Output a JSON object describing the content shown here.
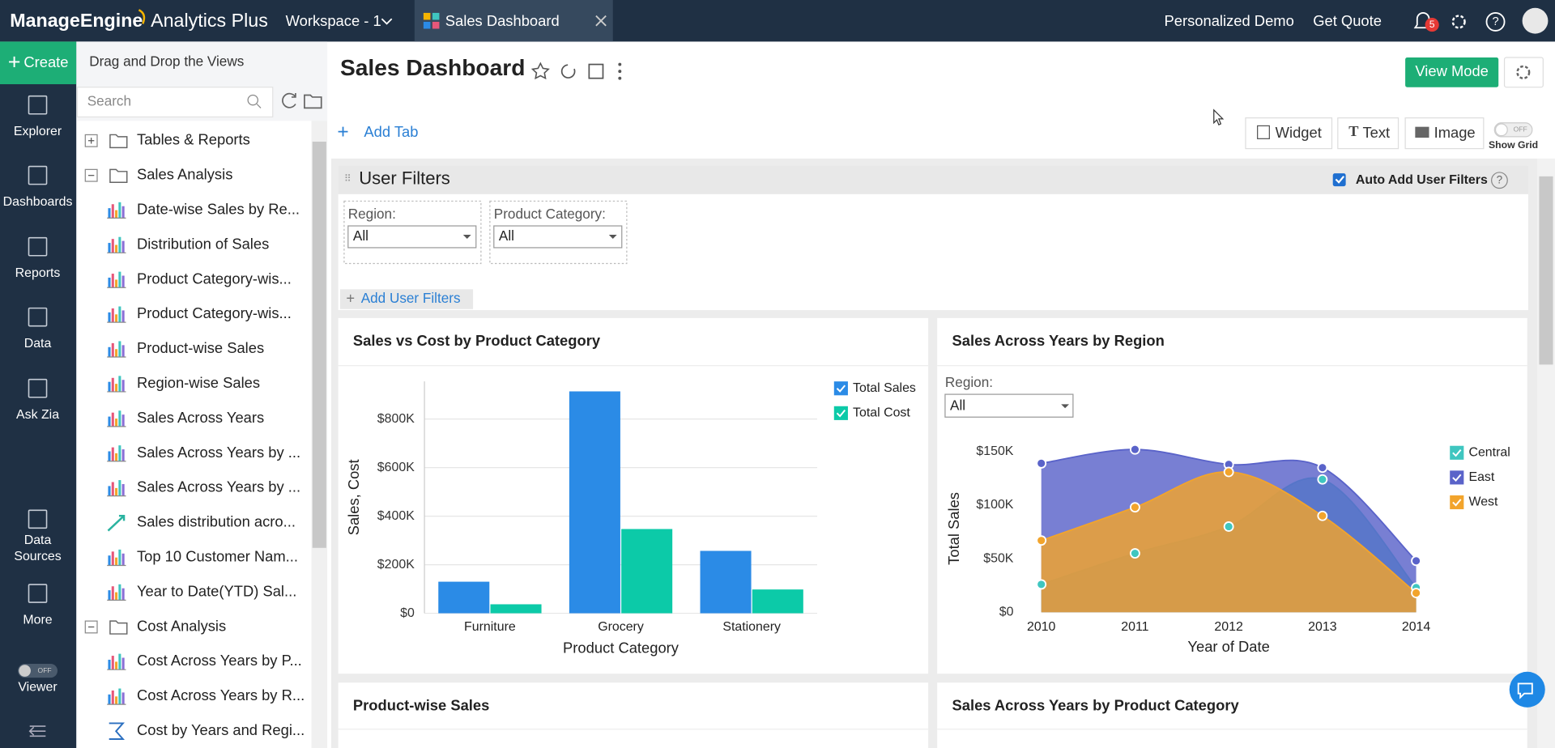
{
  "header": {
    "brand": "ManageEngine",
    "product": "Analytics Plus",
    "workspace": "Workspace - 1",
    "tab": "Sales Dashboard",
    "links": [
      "Personalized Demo",
      "Get Quote"
    ],
    "notifications": "5"
  },
  "nav": {
    "create": "Create",
    "items": [
      "Explorer",
      "Dashboards",
      "Reports",
      "Data",
      "Ask Zia",
      "Data Sources",
      "More",
      "Viewer"
    ],
    "viewer_toggle": "OFF"
  },
  "sidebar": {
    "title": "Drag and Drop the Views",
    "search": "Search",
    "tree": [
      {
        "label": "Tables & Reports",
        "type": "folder",
        "expanded": false
      },
      {
        "label": "Sales Analysis",
        "type": "folder",
        "expanded": true
      },
      {
        "label": "Date-wise Sales by Re...",
        "type": "bar"
      },
      {
        "label": "Distribution of Sales",
        "type": "bar"
      },
      {
        "label": "Product Category-wis...",
        "type": "bar"
      },
      {
        "label": "Product Category-wis...",
        "type": "bar"
      },
      {
        "label": "Product-wise Sales",
        "type": "bar"
      },
      {
        "label": "Region-wise Sales",
        "type": "bar"
      },
      {
        "label": "Sales Across Years",
        "type": "bar"
      },
      {
        "label": "Sales Across Years by ...",
        "type": "bar"
      },
      {
        "label": "Sales Across Years by ...",
        "type": "bar"
      },
      {
        "label": "Sales distribution acro...",
        "type": "scatter"
      },
      {
        "label": "Top 10 Customer Nam...",
        "type": "bar"
      },
      {
        "label": "Year to Date(YTD) Sal...",
        "type": "bar"
      },
      {
        "label": "Cost Analysis",
        "type": "folder",
        "expanded": true
      },
      {
        "label": "Cost Across Years by P...",
        "type": "bar"
      },
      {
        "label": "Cost Across Years by R...",
        "type": "bar"
      },
      {
        "label": "Cost by Years and Regi...",
        "type": "pivot"
      }
    ]
  },
  "dashboard": {
    "title": "Sales Dashboard",
    "view_mode": "View Mode",
    "add_tab": "Add Tab",
    "tools": [
      "Widget",
      "Text",
      "Image"
    ],
    "grid_toggle": "OFF",
    "show_grid": "Show Grid"
  },
  "filters": {
    "title": "User Filters",
    "auto_add": "Auto Add User Filters",
    "items": [
      {
        "label": "Region:",
        "value": "All"
      },
      {
        "label": "Product Category:",
        "value": "All"
      }
    ],
    "add": "Add User Filters"
  },
  "widgets": [
    {
      "type": "bar",
      "title": "Sales vs Cost by Product Category",
      "x_label": "Product Category",
      "y_label": "Sales, Cost",
      "grid": true,
      "categories": [
        "Furniture",
        "Grocery",
        "Stationery"
      ],
      "series": [
        {
          "name": "Total Sales",
          "color": "#2b8be6",
          "values": [
            130000,
            914000,
            257000
          ]
        },
        {
          "name": "Total Cost",
          "color": "#0ccaa8",
          "values": [
            37000,
            347000,
            98000
          ]
        }
      ],
      "ylim": [
        0,
        955000
      ],
      "yticks": [
        {
          "value": 0,
          "label": "$0"
        },
        {
          "value": 200000,
          "label": "$200K"
        },
        {
          "value": 400000,
          "label": "$400K"
        },
        {
          "value": 600000,
          "label": "$600K"
        },
        {
          "value": 800000,
          "label": "$800K"
        }
      ]
    },
    {
      "type": "area",
      "title": "Sales Across Years by Region",
      "filter": {
        "label": "Region:",
        "value": "All"
      },
      "x_label": "Year of Date",
      "y_label": "Total Sales",
      "grid": false,
      "x": [
        2010,
        2011,
        2012,
        2013,
        2014
      ],
      "xlim": [
        2010,
        2014
      ],
      "xticks": [
        2010,
        2011,
        2012,
        2013,
        2014
      ],
      "series": [
        {
          "name": "Central",
          "color": "#3fc6c0",
          "values": [
            26000,
            55000,
            80000,
            124000,
            23000
          ]
        },
        {
          "name": "East",
          "color": "#5a63c9",
          "values": [
            139000,
            152000,
            138000,
            135000,
            48000
          ]
        },
        {
          "name": "West",
          "color": "#f2a42c",
          "values": [
            67000,
            98000,
            131000,
            90000,
            18000
          ]
        }
      ],
      "ylim": [
        0,
        160000
      ],
      "yticks": [
        {
          "value": 0,
          "label": "$0"
        },
        {
          "value": 50000,
          "label": "$50K"
        },
        {
          "value": 100000,
          "label": "$100K"
        },
        {
          "value": 150000,
          "label": "$150K"
        }
      ]
    },
    {
      "title": "Product-wise Sales"
    },
    {
      "title": "Sales Across Years by Product Category"
    }
  ]
}
